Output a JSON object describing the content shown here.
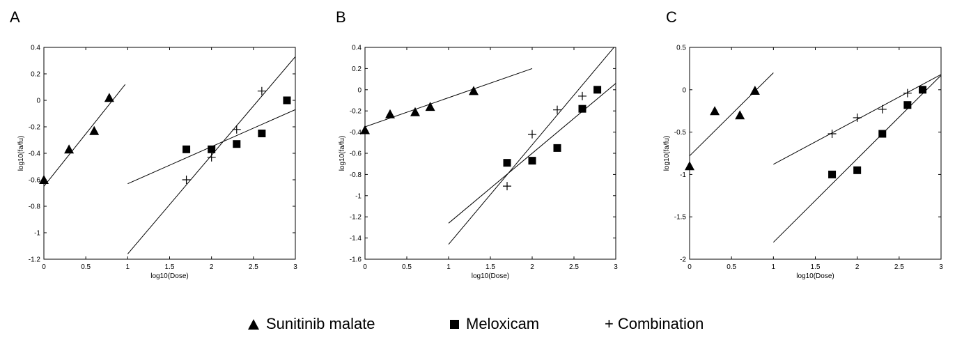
{
  "chart_data": [
    {
      "type": "scatter",
      "panel_label": "A",
      "xlabel": "log10(Dose)",
      "ylabel": "log10(fa/fu)",
      "xlim": [
        0,
        3
      ],
      "ylim": [
        -1.2,
        0.4
      ],
      "xticks": [
        "0",
        "0.5",
        "1",
        "1.5",
        "2",
        "2.5",
        "3"
      ],
      "xtick_values": [
        0,
        0.5,
        1,
        1.5,
        2,
        2.5,
        3
      ],
      "yticks": [
        "-1.2",
        "-1",
        "-0.8",
        "-0.6",
        "-0.4",
        "-0.2",
        "0",
        "0.2",
        "0.4"
      ],
      "ytick_values": [
        -1.2,
        -1,
        -0.8,
        -0.6,
        -0.4,
        -0.2,
        0,
        0.2,
        0.4
      ],
      "series": [
        {
          "name": "Sunitinib malate",
          "marker": "triangle",
          "x": [
            0,
            0.3,
            0.6,
            0.78
          ],
          "y": [
            -0.6,
            -0.37,
            -0.23,
            0.02
          ],
          "fit": {
            "x": [
              0,
              0.97
            ],
            "y": [
              -0.65,
              0.12
            ]
          }
        },
        {
          "name": "Meloxicam",
          "marker": "square",
          "x": [
            1.7,
            2.0,
            2.3,
            2.6,
            2.9
          ],
          "y": [
            -0.37,
            -0.37,
            -0.33,
            -0.25,
            0.0
          ],
          "fit": {
            "x": [
              1,
              3
            ],
            "y": [
              -0.63,
              -0.07
            ]
          }
        },
        {
          "name": "Combination",
          "marker": "plus",
          "x": [
            1.7,
            2.0,
            2.3,
            2.6
          ],
          "y": [
            -0.6,
            -0.43,
            -0.22,
            0.07
          ],
          "fit": {
            "x": [
              1,
              3
            ],
            "y": [
              -1.16,
              0.33
            ]
          }
        }
      ]
    },
    {
      "type": "scatter",
      "panel_label": "B",
      "xlabel": "log10(Dose)",
      "ylabel": "log10(fa/fu)",
      "xlim": [
        0,
        3
      ],
      "ylim": [
        -1.6,
        0.4
      ],
      "xticks": [
        "0",
        "0.5",
        "1",
        "1.5",
        "2",
        "2.5",
        "3"
      ],
      "xtick_values": [
        0,
        0.5,
        1,
        1.5,
        2,
        2.5,
        3
      ],
      "yticks": [
        "-1.6",
        "-1.4",
        "-1.2",
        "-1",
        "-0.8",
        "-0.6",
        "-0.4",
        "-0.2",
        "0",
        "0.2",
        "0.4"
      ],
      "ytick_values": [
        -1.6,
        -1.4,
        -1.2,
        -1,
        -0.8,
        -0.6,
        -0.4,
        -0.2,
        0,
        0.2,
        0.4
      ],
      "series": [
        {
          "name": "Sunitinib malate",
          "marker": "triangle",
          "x": [
            0,
            0.3,
            0.6,
            0.78,
            1.3
          ],
          "y": [
            -0.38,
            -0.23,
            -0.21,
            -0.16,
            -0.01
          ],
          "fit": {
            "x": [
              0,
              2
            ],
            "y": [
              -0.35,
              0.2
            ]
          }
        },
        {
          "name": "Meloxicam",
          "marker": "square",
          "x": [
            1.7,
            2.0,
            2.3,
            2.6,
            2.78
          ],
          "y": [
            -0.69,
            -0.67,
            -0.55,
            -0.18,
            0.0
          ],
          "fit": {
            "x": [
              1,
              3
            ],
            "y": [
              -1.26,
              0.06
            ]
          }
        },
        {
          "name": "Combination",
          "marker": "plus",
          "x": [
            1.7,
            2.0,
            2.3,
            2.6
          ],
          "y": [
            -0.91,
            -0.42,
            -0.19,
            -0.06
          ],
          "fit": {
            "x": [
              1,
              3
            ],
            "y": [
              -1.46,
              0.42
            ]
          }
        }
      ]
    },
    {
      "type": "scatter",
      "panel_label": "C",
      "xlabel": "log10(Dose)",
      "ylabel": "log10(fa/fu)",
      "xlim": [
        0,
        3
      ],
      "ylim": [
        -2,
        0.5
      ],
      "xticks": [
        "0",
        "0.5",
        "1",
        "1.5",
        "2",
        "2.5",
        "3"
      ],
      "xtick_values": [
        0,
        0.5,
        1,
        1.5,
        2,
        2.5,
        3
      ],
      "yticks": [
        "-2",
        "-1.5",
        "-1",
        "-0.5",
        "0",
        "0.5"
      ],
      "ytick_values": [
        -2,
        -1.5,
        -1,
        -0.5,
        0,
        0.5
      ],
      "series": [
        {
          "name": "Sunitinib malate",
          "marker": "triangle",
          "x": [
            0,
            0.3,
            0.6,
            0.78
          ],
          "y": [
            -0.9,
            -0.25,
            -0.3,
            -0.01
          ],
          "fit": {
            "x": [
              0,
              1
            ],
            "y": [
              -0.78,
              0.2
            ]
          }
        },
        {
          "name": "Meloxicam",
          "marker": "square",
          "x": [
            1.7,
            2.0,
            2.3,
            2.6,
            2.78
          ],
          "y": [
            -1.0,
            -0.95,
            -0.52,
            -0.18,
            0.0
          ],
          "fit": {
            "x": [
              1,
              3
            ],
            "y": [
              -1.8,
              0.17
            ]
          }
        },
        {
          "name": "Combination",
          "marker": "plus",
          "x": [
            1.7,
            2.0,
            2.3,
            2.6
          ],
          "y": [
            -0.52,
            -0.33,
            -0.23,
            -0.04
          ],
          "fit": {
            "x": [
              1,
              3
            ],
            "y": [
              -0.88,
              0.18
            ]
          }
        }
      ]
    }
  ],
  "legend": {
    "sunitinib": "Sunitinib malate",
    "meloxicam": "Meloxicam",
    "combination": "Combination",
    "plus_symbol": "+"
  }
}
